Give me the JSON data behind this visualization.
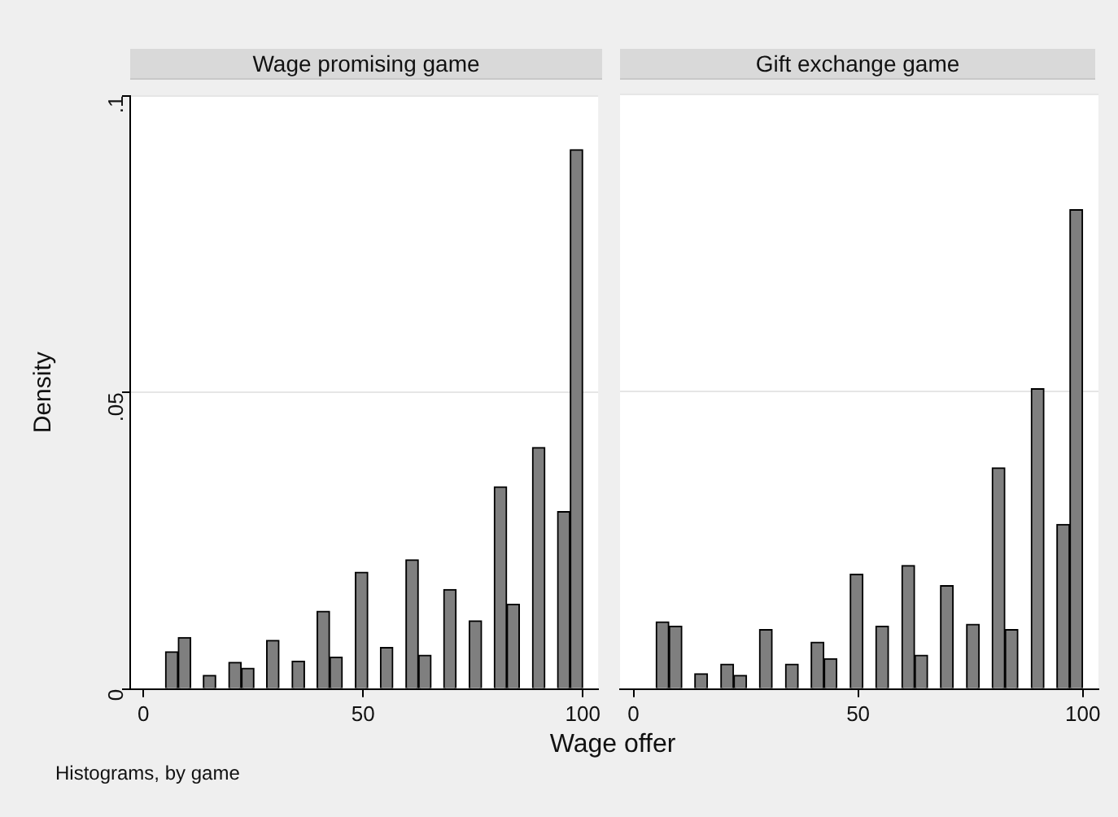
{
  "chart_data": [
    {
      "type": "histogram",
      "title": "Wage promising game",
      "xlabel": "Wage offer",
      "ylabel": "Density",
      "annotations": [
        "Histograms, by game"
      ],
      "bins": [
        5,
        7.9,
        10.8,
        13.6,
        16.5,
        19.4,
        22.3,
        25.2,
        28.0,
        30.9,
        33.8,
        36.7,
        39.5,
        42.4,
        45.3,
        48.2,
        51.1,
        53.9,
        56.8,
        59.7,
        62.6,
        65.5,
        68.3,
        71.2,
        74.1,
        77.0,
        79.8,
        82.7,
        85.6,
        88.5,
        91.4,
        94.2,
        97.1,
        100
      ],
      "values": [
        0.0063,
        0.0087,
        0,
        0.0023,
        0,
        0.0045,
        0.0035,
        0,
        0.0082,
        0,
        0.0047,
        0,
        0.0131,
        0.0054,
        0,
        0.0197,
        0,
        0.007,
        0,
        0.0218,
        0.0057,
        0,
        0.0168,
        0,
        0.0115,
        0,
        0.0341,
        0.0143,
        0,
        0.0407,
        0,
        0.0299,
        0.0909
      ],
      "color": "#7f7f7f",
      "xlim": [
        -3,
        103.5
      ],
      "ylim": [
        0,
        0.1
      ],
      "xticks": [
        0,
        50,
        100
      ],
      "yticks": [
        {
          "value": 0,
          "label": "0"
        },
        {
          "value": 0.05,
          "label": ".05"
        },
        {
          "value": 0.1,
          "label": ".1"
        }
      ],
      "grid": "y"
    },
    {
      "type": "histogram",
      "title": "Gift exchange game",
      "bins": [
        5,
        7.9,
        10.8,
        13.6,
        16.5,
        19.4,
        22.3,
        25.2,
        28.0,
        30.9,
        33.8,
        36.7,
        39.5,
        42.4,
        45.3,
        48.2,
        51.1,
        53.9,
        56.8,
        59.7,
        62.6,
        65.5,
        68.3,
        71.2,
        74.1,
        77.0,
        79.8,
        82.7,
        85.6,
        88.5,
        91.4,
        94.2,
        97.1,
        100
      ],
      "values": [
        0.0113,
        0.0106,
        0,
        0.0026,
        0,
        0.0042,
        0.0023,
        0,
        0.01,
        0,
        0.0042,
        0,
        0.0079,
        0.0051,
        0,
        0.0193,
        0,
        0.0106,
        0,
        0.0208,
        0.0057,
        0,
        0.0174,
        0,
        0.0109,
        0,
        0.0372,
        0.01,
        0,
        0.0505,
        0,
        0.0277,
        0.0806
      ],
      "color": "#7f7f7f",
      "xlim": [
        -3,
        103.5
      ],
      "ylim": [
        0,
        0.1
      ],
      "xticks": [
        0,
        50,
        100
      ],
      "yticks": [
        0,
        0.05,
        0.1
      ],
      "grid": "y",
      "tick_labels": "x"
    }
  ]
}
